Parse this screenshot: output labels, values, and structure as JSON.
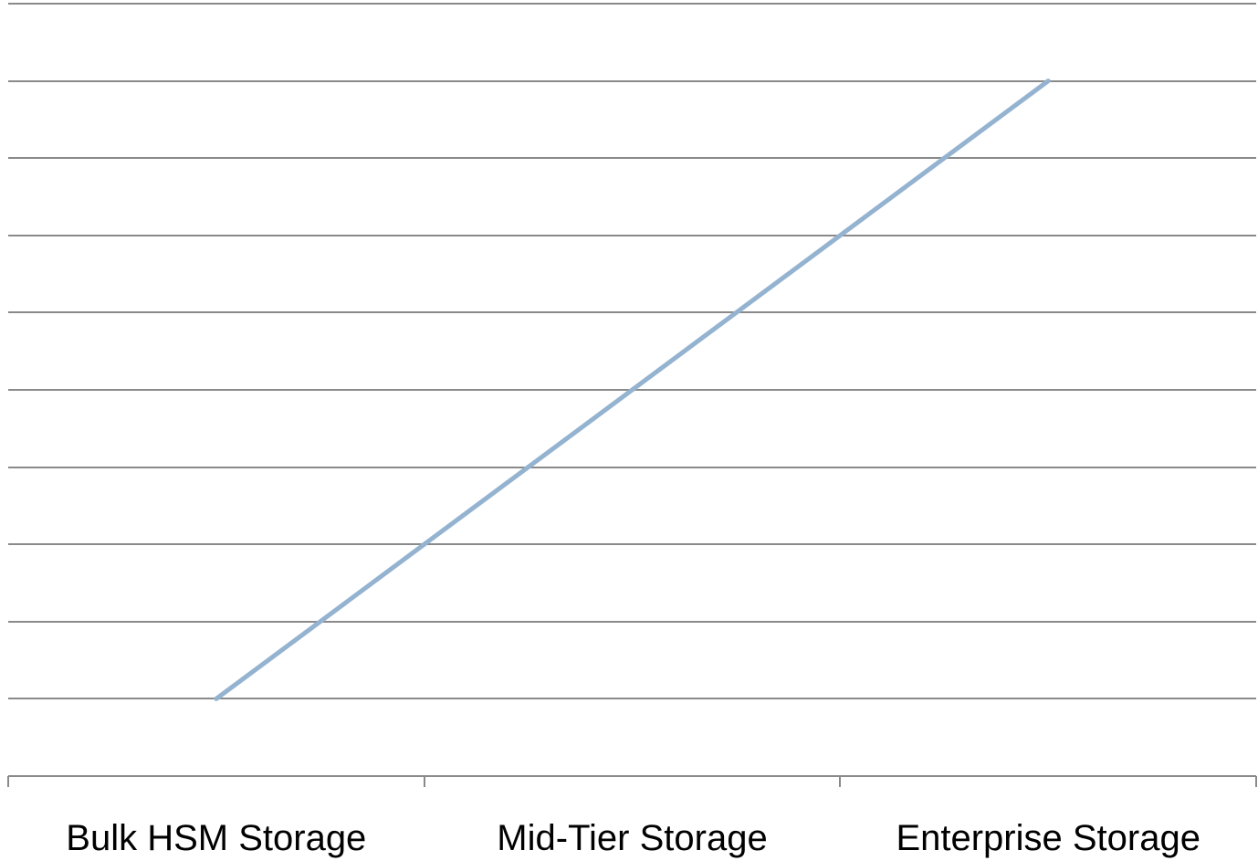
{
  "chart_data": {
    "type": "line",
    "categories": [
      "Bulk HSM Storage",
      "Mid-Tier Storage",
      "Enterprise Storage"
    ],
    "series": [
      {
        "values": [
          1,
          5,
          9
        ],
        "color": "#94b3d0"
      }
    ],
    "title": "",
    "xlabel": "",
    "ylabel": "",
    "ylim": [
      0,
      10
    ],
    "y_tick_step": 1,
    "y_tick_labels_shown": false,
    "grid": true,
    "legend": "none",
    "colors": {
      "grid": "#8a8a8a",
      "axis": "#8a8a8a",
      "text": "#000000"
    }
  }
}
